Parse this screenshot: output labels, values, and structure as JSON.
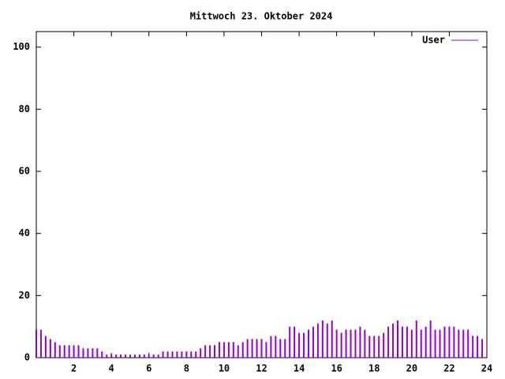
{
  "chart_data": {
    "type": "impulse",
    "title": "Mittwoch 23. Oktober 2024",
    "x": [
      0,
      0.25,
      0.5,
      0.75,
      1,
      1.25,
      1.5,
      1.75,
      2,
      2.25,
      2.5,
      2.75,
      3,
      3.25,
      3.5,
      3.75,
      4,
      4.25,
      4.5,
      4.75,
      5,
      5.25,
      5.5,
      5.75,
      6,
      6.25,
      6.5,
      6.75,
      7,
      7.25,
      7.5,
      7.75,
      8,
      8.25,
      8.5,
      8.75,
      9,
      9.25,
      9.5,
      9.75,
      10,
      10.25,
      10.5,
      10.75,
      11,
      11.25,
      11.5,
      11.75,
      12,
      12.25,
      12.5,
      12.75,
      13,
      13.25,
      13.5,
      13.75,
      14,
      14.25,
      14.5,
      14.75,
      15,
      15.25,
      15.5,
      15.75,
      16,
      16.25,
      16.5,
      16.75,
      17,
      17.25,
      17.5,
      17.75,
      18,
      18.25,
      18.5,
      18.75,
      19,
      19.25,
      19.5,
      19.75,
      20,
      20.25,
      20.5,
      20.75,
      21,
      21.25,
      21.5,
      21.75,
      22,
      22.25,
      22.5,
      22.75,
      23,
      23.25,
      23.5,
      23.75
    ],
    "series": [
      {
        "name": "User",
        "color": "#9400d3",
        "values": [
          9,
          9,
          7,
          6,
          5,
          4,
          4,
          4,
          4,
          4,
          3,
          3,
          3,
          3,
          2,
          1,
          1,
          1,
          1,
          1,
          1,
          1,
          1,
          1,
          1,
          1,
          1,
          2,
          2,
          2,
          2,
          2,
          2,
          2,
          2,
          3,
          4,
          4,
          4,
          5,
          5,
          5,
          5,
          4,
          5,
          6,
          6,
          6,
          6,
          5,
          7,
          7,
          6,
          6,
          10,
          10,
          8,
          8,
          9,
          10,
          11,
          12,
          11,
          12,
          9,
          8,
          9,
          9,
          9,
          10,
          9,
          7,
          7,
          7,
          8,
          10,
          11,
          12,
          10,
          10,
          9,
          12,
          9,
          10,
          12,
          9,
          9,
          10,
          10,
          10,
          9,
          9,
          9,
          7,
          7,
          6
        ]
      }
    ],
    "xlim": [
      0,
      24
    ],
    "ylim": [
      0,
      105
    ],
    "xticks": [
      2,
      4,
      6,
      8,
      10,
      12,
      14,
      16,
      18,
      20,
      22,
      24
    ],
    "yticks": [
      0,
      20,
      40,
      60,
      80,
      100
    ],
    "legend": "top-right"
  }
}
